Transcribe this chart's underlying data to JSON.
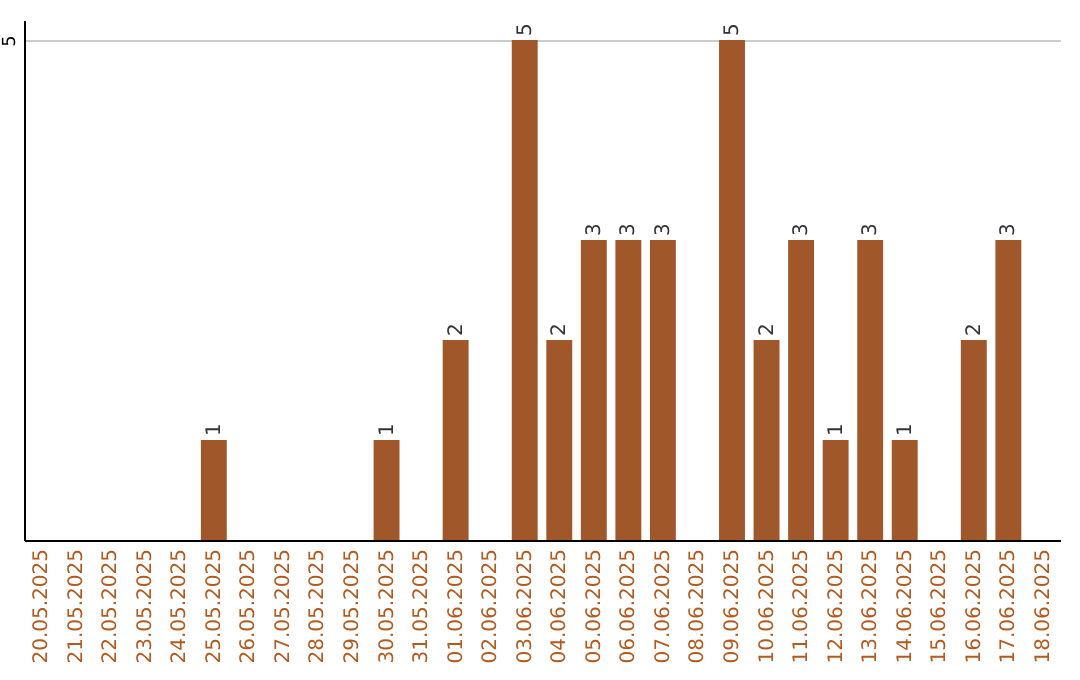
{
  "chart_data": {
    "type": "bar",
    "categories": [
      "20.05.2025",
      "21.05.2025",
      "22.05.2025",
      "23.05.2025",
      "24.05.2025",
      "25.05.2025",
      "26.05.2025",
      "27.05.2025",
      "28.05.2025",
      "29.05.2025",
      "30.05.2025",
      "31.05.2025",
      "01.06.2025",
      "02.06.2025",
      "03.06.2025",
      "04.06.2025",
      "05.06.2025",
      "06.06.2025",
      "07.06.2025",
      "08.06.2025",
      "09.06.2025",
      "10.06.2025",
      "11.06.2025",
      "12.06.2025",
      "13.06.2025",
      "14.06.2025",
      "15.06.2025",
      "16.06.2025",
      "17.06.2025",
      "18.06.2025"
    ],
    "values": [
      0,
      0,
      0,
      0,
      0,
      1,
      0,
      0,
      0,
      0,
      1,
      0,
      2,
      0,
      5,
      2,
      3,
      3,
      3,
      0,
      5,
      2,
      3,
      1,
      3,
      1,
      0,
      2,
      3,
      0
    ],
    "value_labels": [
      null,
      null,
      null,
      null,
      null,
      "1",
      null,
      null,
      null,
      null,
      "1",
      null,
      "2",
      null,
      "5",
      "2",
      "3",
      "3",
      "3",
      null,
      "5",
      "2",
      "3",
      "1",
      "3",
      "1",
      null,
      "2",
      "3",
      null
    ],
    "color": "#a0582b",
    "ylim": [
      0,
      5.2
    ],
    "yticks": [
      5
    ],
    "grid": "y"
  }
}
